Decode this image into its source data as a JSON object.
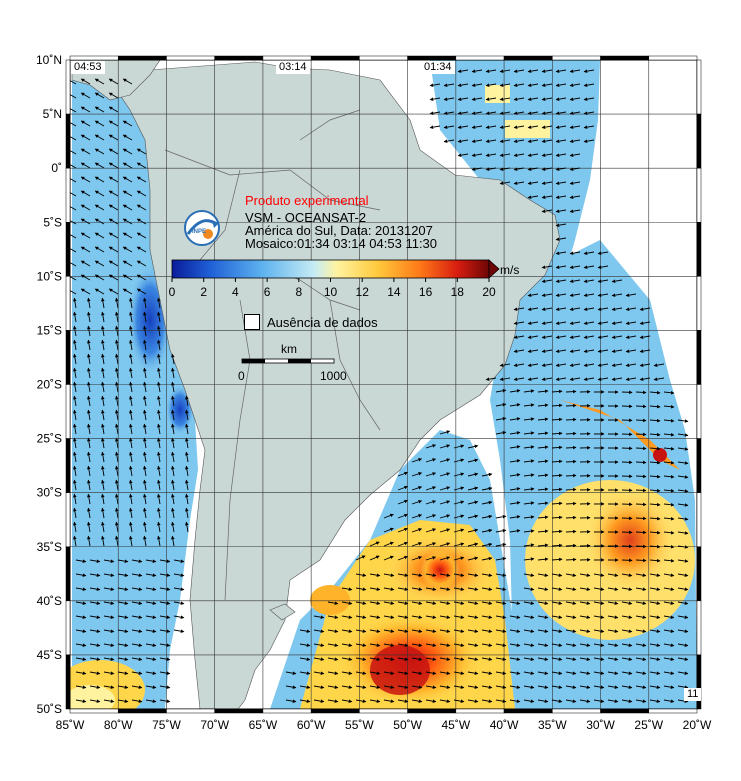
{
  "product": {
    "experimental_label": "Produto experimental",
    "satellite": "VSM - OCEANSAT-2",
    "region_date": "América do Sul, Data: 20131207",
    "mosaic": "Mosaico:01:34 03:14 04:53 11:30"
  },
  "pass_times": [
    "04:53",
    "03:14",
    "01:34"
  ],
  "corner_label": "11",
  "colorbar": {
    "unit": "m/s",
    "ticks": [
      "0",
      "2",
      "4",
      "6",
      "8",
      "10",
      "12",
      "14",
      "16",
      "18",
      "20"
    ],
    "colors": [
      "#0a1c9a",
      "#1450cf",
      "#2f86e6",
      "#5bb0ee",
      "#8fd1f0",
      "#c7ecf4",
      "#fff7a8",
      "#ffd54a",
      "#ff9a20",
      "#ff5a10",
      "#d81d10",
      "#8c0a0a"
    ]
  },
  "no_data_label": "Ausência de dados",
  "scale_bar": {
    "unit": "km",
    "start": "0",
    "end": "1000"
  },
  "axes": {
    "lat_labels": [
      "10˚N",
      "5˚N",
      "0˚",
      "5˚S",
      "10˚S",
      "15˚S",
      "20˚S",
      "25˚S",
      "30˚S",
      "35˚S",
      "40˚S",
      "45˚S",
      "50˚S"
    ],
    "lon_labels": [
      "85˚W",
      "80˚W",
      "75˚W",
      "70˚W",
      "65˚W",
      "60˚W",
      "55˚W",
      "50˚W",
      "45˚W",
      "40˚W",
      "35˚W",
      "30˚W",
      "25˚W",
      "20˚W"
    ],
    "lat_range": [
      -50,
      10
    ],
    "lon_range": [
      -85,
      -20
    ],
    "grid": true
  },
  "colors": {
    "land": "#c9d7d5",
    "no_data": "#ffffff",
    "background_wind": "#7ec7ee",
    "title_red": "#ff0000"
  }
}
